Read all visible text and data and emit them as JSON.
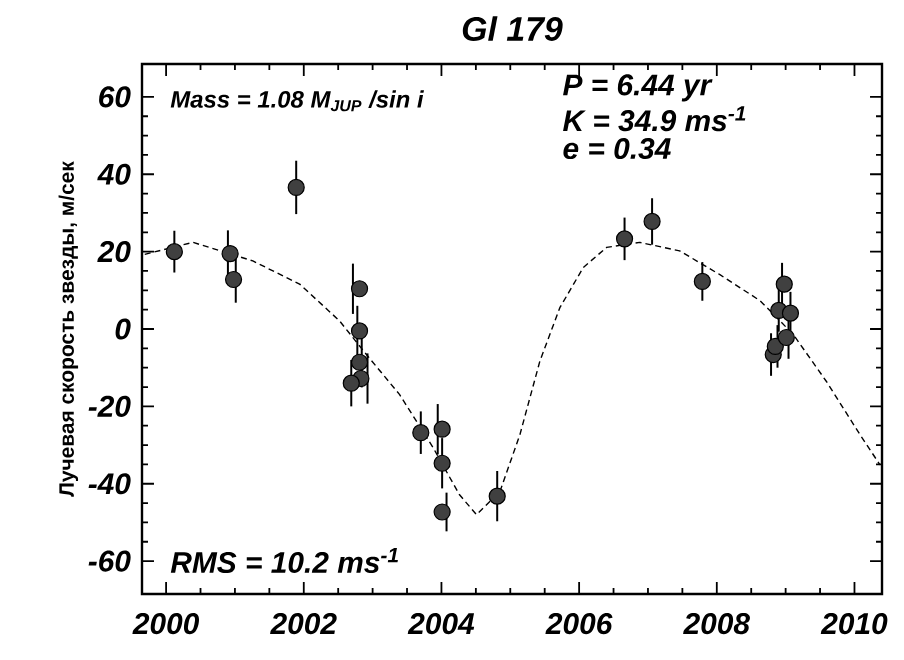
{
  "chart_data": {
    "type": "scatter",
    "title": "Gl 179",
    "ylabel": "Лучевая скорость звезды, м/сек",
    "xlim": [
      1999.65,
      2010.4
    ],
    "ylim": [
      -68.5,
      68.5
    ],
    "xticks": [
      2000,
      2002,
      2004,
      2006,
      2008,
      2010
    ],
    "yticks": [
      -60,
      -40,
      -20,
      0,
      20,
      40,
      60
    ],
    "grid": false,
    "series": [
      {
        "marker": "circle",
        "color": "#404040",
        "x": [
          2000.12,
          2000.93,
          2000.98,
          2001.89,
          2002.81,
          2002.81,
          2002.81,
          2002.83,
          2002.69,
          2003.7,
          2004.01,
          2004.01,
          2004.01,
          2004.81,
          2006.66,
          2007.06,
          2007.79,
          2008.82,
          2008.85,
          2008.98,
          2008.9,
          2009.07,
          2009.01
        ],
        "values": [
          20.0,
          19.5,
          12.8,
          36.6,
          10.4,
          -0.5,
          -8.6,
          -12.8,
          -14.0,
          -26.8,
          -25.9,
          -34.7,
          -47.3,
          -43.2,
          23.3,
          27.8,
          12.3,
          -6.6,
          -4.5,
          11.6,
          4.8,
          4.1,
          -2.2
        ],
        "errors": [
          5.4,
          6,
          6,
          6.9,
          6.5,
          6.5,
          6.5,
          6.5,
          6,
          5.5,
          6.5,
          6.5,
          5,
          6.5,
          5.5,
          6,
          5,
          5.5,
          5.5,
          5.5,
          5.5,
          5.5,
          5.5
        ]
      },
      {
        "type": "line",
        "marker": "none",
        "line_style": "dashed",
        "color": "#000000",
        "x": [
          1999.69,
          2000.39,
          2001.26,
          2001.94,
          2002.52,
          2002.91,
          2003.39,
          2003.88,
          2004.26,
          2004.51,
          2004.85,
          2005.14,
          2005.43,
          2005.72,
          2006.06,
          2006.4,
          2006.88,
          2007.46,
          2008.04,
          2008.63,
          2009.11,
          2009.59,
          2010.08,
          2010.37
        ],
        "values": [
          19.3,
          22.4,
          17.6,
          11.6,
          2.1,
          -6.6,
          -16.9,
          -30.7,
          -42.8,
          -48.0,
          -42.0,
          -27.3,
          -8.3,
          5.5,
          15.9,
          21.1,
          22.4,
          20.2,
          14.1,
          7.3,
          -1.4,
          -13.5,
          -27.3,
          -35.1
        ]
      }
    ],
    "annotations": [
      "Mass = 1.08 M$_{JUP}$ /sin i",
      "P = 6.44 yr",
      "K = 34.9 ms$^{-1}$",
      "e = 0.34",
      "RMS = 10.2 ms$^{-1}$"
    ]
  }
}
